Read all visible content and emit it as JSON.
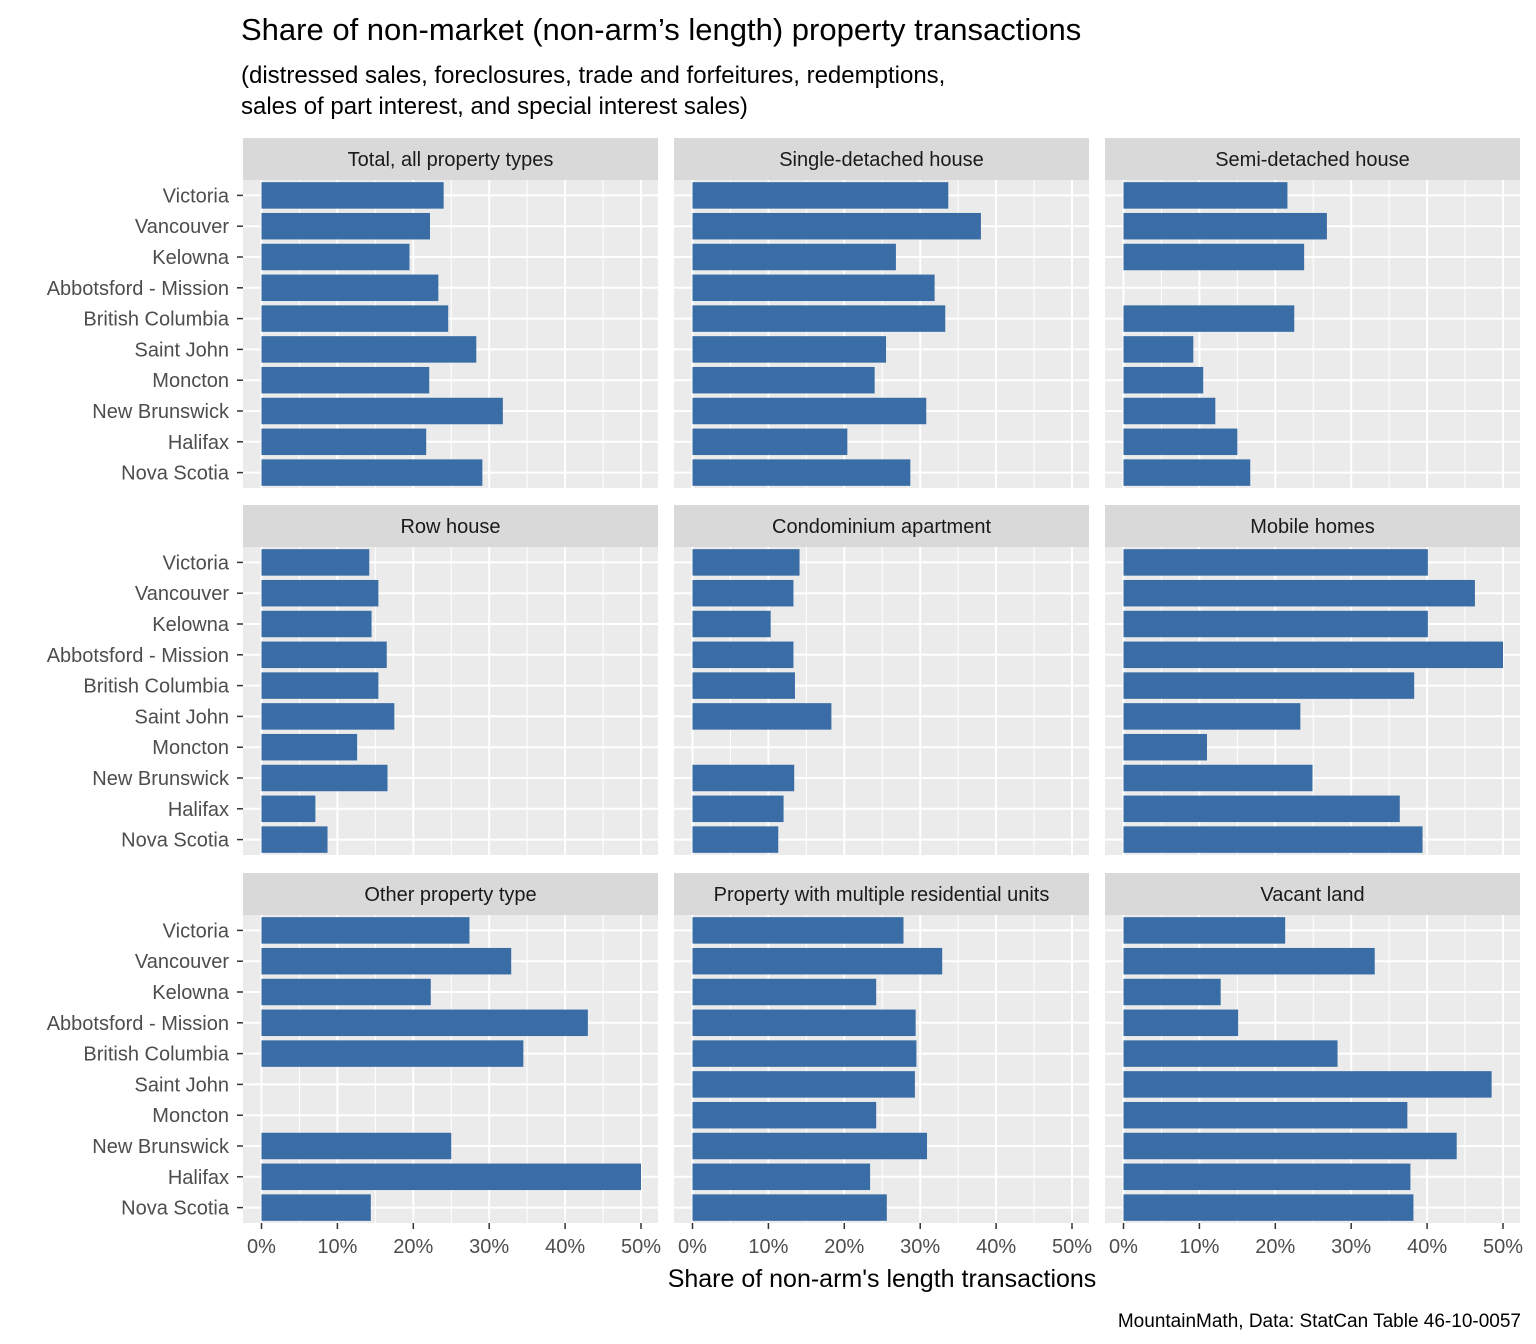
{
  "chart_data": {
    "type": "bar",
    "orientation": "horizontal",
    "facet_layout": "3x3 grid",
    "title": "Share of non-market (non-arm’s length) property transactions",
    "subtitle_lines": [
      "(distressed sales, foreclosures, trade and forfeitures, redemptions,",
      "sales of part interest, and special interest sales)"
    ],
    "xlabel": "Share of non-arm's length transactions",
    "ylabel": "",
    "caption": "MountainMath, Data: StatCan Table 46-10-0057",
    "xlim": [
      0,
      50
    ],
    "x_ticks": [
      0,
      10,
      20,
      30,
      40,
      50
    ],
    "x_tick_labels": [
      "0%",
      "10%",
      "20%",
      "30%",
      "40%",
      "50%"
    ],
    "grid": true,
    "bar_color": "#3a6da6",
    "categories": [
      "Victoria",
      "Vancouver",
      "Kelowna",
      "Abbotsford - Mission",
      "British Columbia",
      "Saint John",
      "Moncton",
      "New Brunswick",
      "Halifax",
      "Nova Scotia"
    ],
    "facets": [
      {
        "name": "Total, all property types",
        "values": [
          24.0,
          22.2,
          19.5,
          23.3,
          24.6,
          28.3,
          22.1,
          31.8,
          21.7,
          29.1
        ]
      },
      {
        "name": "Single-detached house",
        "values": [
          33.7,
          38.0,
          26.8,
          31.9,
          33.3,
          25.5,
          24.0,
          30.8,
          20.4,
          28.7
        ]
      },
      {
        "name": "Semi-detached house",
        "values": [
          21.6,
          26.8,
          23.8,
          null,
          22.5,
          9.2,
          10.5,
          12.1,
          15.0,
          16.7
        ]
      },
      {
        "name": "Row house",
        "values": [
          14.2,
          15.4,
          14.5,
          16.5,
          15.4,
          17.5,
          12.6,
          16.6,
          7.1,
          8.7
        ]
      },
      {
        "name": "Condominium apartment",
        "values": [
          14.1,
          13.3,
          10.3,
          13.3,
          13.5,
          18.3,
          null,
          13.4,
          12.0,
          11.3
        ]
      },
      {
        "name": "Mobile homes",
        "values": [
          40.1,
          46.3,
          40.1,
          50.0,
          38.3,
          23.3,
          11.0,
          24.9,
          36.4,
          39.4
        ]
      },
      {
        "name": "Other property type",
        "values": [
          27.4,
          32.9,
          22.3,
          43.0,
          34.5,
          null,
          null,
          25.0,
          50.0,
          14.4
        ]
      },
      {
        "name": "Property with multiple residential units",
        "values": [
          27.8,
          32.9,
          24.2,
          29.4,
          29.5,
          29.3,
          24.2,
          30.9,
          23.4,
          25.6
        ]
      },
      {
        "name": "Vacant land",
        "values": [
          21.3,
          33.1,
          12.8,
          15.1,
          28.2,
          48.5,
          37.4,
          43.9,
          37.8,
          38.2
        ]
      }
    ]
  }
}
